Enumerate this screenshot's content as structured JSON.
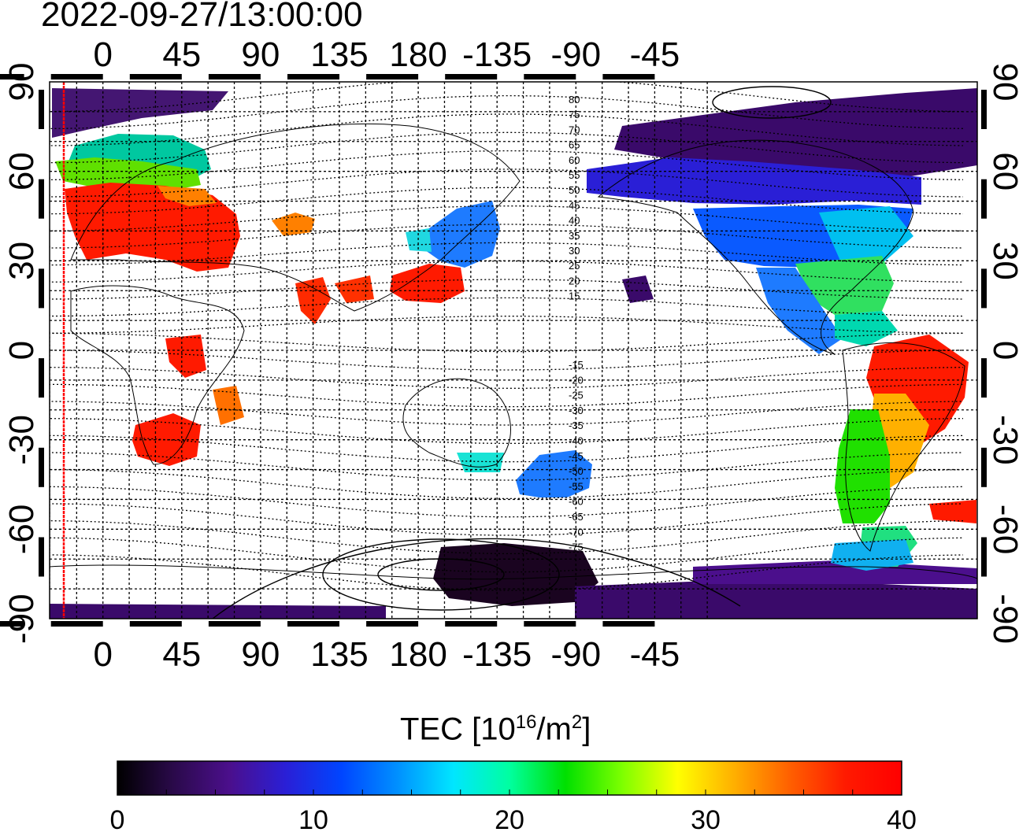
{
  "timestamp": "2022-09-27/13:00:00",
  "map": {
    "lon_ticks": [
      "0",
      "45",
      "90",
      "135",
      "180",
      "-135",
      "-90",
      "-45"
    ],
    "lat_ticks": [
      "90",
      "60",
      "30",
      "0",
      "-30",
      "-60",
      "-90"
    ],
    "magnetic_lat_labels_north": [
      "80",
      "75",
      "70",
      "65",
      "60",
      "55",
      "50",
      "45",
      "40",
      "35",
      "30",
      "25",
      "20",
      "15"
    ],
    "magnetic_lat_labels_south": [
      "-15",
      "-20",
      "-25",
      "-30",
      "-35",
      "-40",
      "-45",
      "-50",
      "-55",
      "-60",
      "-65",
      "-70",
      "-75"
    ]
  },
  "colorbar": {
    "title_text": "TEC  [10",
    "title_sup1": "16",
    "title_mid": "/m",
    "title_sup2": "2",
    "title_end": "]",
    "ticks": [
      "0",
      "10",
      "20",
      "30",
      "40"
    ],
    "range": [
      0,
      40
    ],
    "colors": [
      "#000000",
      "#2a0a4a",
      "#4b0f8c",
      "#2a1fd6",
      "#0045ff",
      "#0090ff",
      "#00e6ff",
      "#00ffa0",
      "#00e000",
      "#7cff00",
      "#ffff00",
      "#ffb000",
      "#ff6000",
      "#ff1a00",
      "#ff0000"
    ]
  },
  "colors": {
    "high_tec": "#ff1a00",
    "mid_tec": "#00e000",
    "low_tec": "#2a1fd6",
    "very_low_tec": "#3a0a6a",
    "terminator": "#ff0000"
  }
}
